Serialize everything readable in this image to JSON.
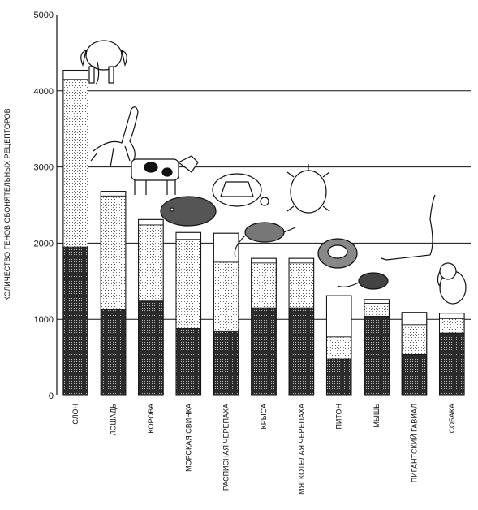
{
  "chart_data": {
    "type": "bar",
    "ylabel": "КОЛИЧЕСТВО ГЕНОВ ОБОНЯТЕЛЬНЫХ РЕЦЕПТОРОВ",
    "ylim": [
      0,
      5000
    ],
    "yticks": [
      0,
      1000,
      2000,
      3000,
      4000,
      5000
    ],
    "grid_lines_at": [
      1000,
      2000,
      3000,
      4000
    ],
    "categories": [
      "СЛОН",
      "ЛОШАДЬ",
      "КОРОВА",
      "МОРСКАЯ СВИНКА",
      "РАСПИСНАЯ ЧЕРЕПАХА",
      "КРЫСА",
      "МЯГКОТЕЛАЯ ЧЕРЕПАХА",
      "ПИТОН",
      "МЫШЬ",
      "ПИГАНТСКИЙ ГАВИАЛ",
      "СОБАКА"
    ],
    "series": [
      {
        "pattern": "dense-stipple",
        "values": [
          1950,
          1130,
          1240,
          880,
          850,
          1150,
          1150,
          480,
          1040,
          540,
          820
        ]
      },
      {
        "pattern": "light-stipple",
        "values": [
          2200,
          1490,
          1000,
          1170,
          900,
          590,
          590,
          290,
          170,
          390,
          190
        ]
      },
      {
        "pattern": "white",
        "values": [
          120,
          60,
          70,
          90,
          380,
          60,
          60,
          540,
          50,
          160,
          70
        ]
      }
    ],
    "animal_icons": [
      "elephant",
      "horse",
      "cow",
      "guinea-pig",
      "turtle",
      "rat",
      "softshell-turtle",
      "python",
      "mouse",
      "gavial",
      "dog"
    ]
  }
}
